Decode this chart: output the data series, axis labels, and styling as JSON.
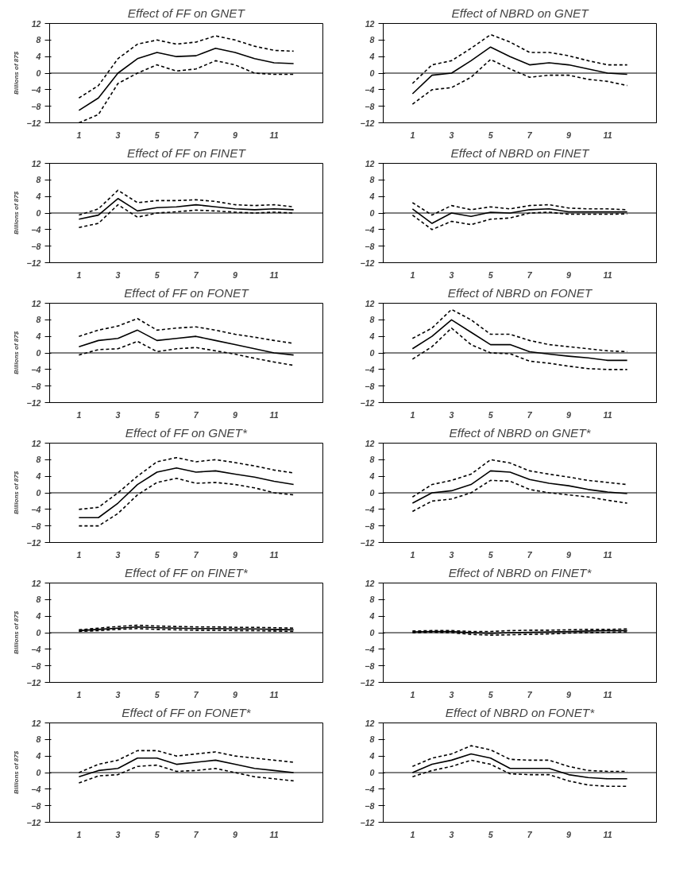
{
  "chart_data": [
    {
      "type": "line",
      "title": "Effect of FF on GNET",
      "ylabel": "Billions of 87$",
      "x": [
        1,
        2,
        3,
        4,
        5,
        6,
        7,
        8,
        9,
        10,
        11,
        12
      ],
      "xlim": [
        -0.5,
        13.5
      ],
      "xticks": [
        1,
        3,
        5,
        7,
        9,
        11
      ],
      "ylim": [
        -12,
        12
      ],
      "yticks": [
        -12,
        -8,
        -4,
        0,
        4,
        8,
        12
      ],
      "grid": false,
      "ref_lines": [
        {
          "axis": "y",
          "value": 0,
          "color": "#000000"
        }
      ],
      "series": [
        {
          "color": "#000000",
          "line_style": "solid",
          "values": [
            -9,
            -6,
            0,
            3.5,
            5,
            4,
            4.2,
            6,
            5,
            3.5,
            2.5,
            2.3
          ]
        },
        {
          "color": "#000000",
          "line_style": "dashed",
          "values": [
            -6,
            -3,
            3.5,
            7,
            8,
            7,
            7.5,
            9,
            8,
            6.5,
            5.5,
            5.3
          ]
        },
        {
          "color": "#000000",
          "line_style": "dashed",
          "values": [
            -12,
            -10,
            -2.5,
            0,
            2,
            0.5,
            1,
            3,
            2,
            0,
            -0.3,
            -0.3
          ]
        }
      ]
    },
    {
      "type": "line",
      "title": "Effect of NBRD on GNET",
      "x": [
        1,
        2,
        3,
        4,
        5,
        6,
        7,
        8,
        9,
        10,
        11,
        12
      ],
      "xlim": [
        -0.5,
        13.5
      ],
      "xticks": [
        1,
        3,
        5,
        7,
        9,
        11
      ],
      "ylim": [
        -12,
        12
      ],
      "yticks": [
        -12,
        -8,
        -4,
        0,
        4,
        8,
        12
      ],
      "grid": false,
      "ref_lines": [
        {
          "axis": "y",
          "value": 0,
          "color": "#000000"
        }
      ],
      "series": [
        {
          "color": "#000000",
          "line_style": "solid",
          "values": [
            -5,
            -0.5,
            0,
            3,
            6.3,
            4,
            2,
            2.5,
            2,
            1,
            0,
            -0.3
          ]
        },
        {
          "color": "#000000",
          "line_style": "dashed",
          "values": [
            -2.5,
            2,
            3,
            6,
            9.3,
            7.5,
            5,
            5,
            4.2,
            3,
            2,
            2
          ]
        },
        {
          "color": "#000000",
          "line_style": "dashed",
          "values": [
            -7.5,
            -4,
            -3.5,
            -1,
            3.3,
            1,
            -1,
            -0.5,
            -0.5,
            -1.5,
            -2,
            -3
          ]
        }
      ]
    },
    {
      "type": "line",
      "title": "Effect of FF on FINET",
      "ylabel": "Billions of 87$",
      "x": [
        1,
        2,
        3,
        4,
        5,
        6,
        7,
        8,
        9,
        10,
        11,
        12
      ],
      "xlim": [
        -0.5,
        13.5
      ],
      "xticks": [
        1,
        3,
        5,
        7,
        9,
        11
      ],
      "ylim": [
        -12,
        12
      ],
      "yticks": [
        -12,
        -8,
        -4,
        0,
        4,
        8,
        12
      ],
      "grid": false,
      "ref_lines": [
        {
          "axis": "y",
          "value": 0,
          "color": "#000000"
        }
      ],
      "series": [
        {
          "color": "#000000",
          "line_style": "solid",
          "values": [
            -1.5,
            -0.5,
            3.5,
            0.5,
            1.3,
            1.5,
            2,
            1.5,
            1,
            0.8,
            1,
            0.8
          ]
        },
        {
          "color": "#000000",
          "line_style": "dashed",
          "values": [
            -0.5,
            1,
            5.5,
            2.5,
            3,
            3,
            3.2,
            2.8,
            2,
            1.8,
            2,
            1.5
          ]
        },
        {
          "color": "#000000",
          "line_style": "dashed",
          "values": [
            -3.5,
            -2.5,
            2,
            -1,
            0,
            0.3,
            0.7,
            0.5,
            0.2,
            0,
            0.2,
            0
          ]
        }
      ]
    },
    {
      "type": "line",
      "title": "Effect of NBRD on FINET",
      "x": [
        1,
        2,
        3,
        4,
        5,
        6,
        7,
        8,
        9,
        10,
        11,
        12
      ],
      "xlim": [
        -0.5,
        13.5
      ],
      "xticks": [
        1,
        3,
        5,
        7,
        9,
        11
      ],
      "ylim": [
        -12,
        12
      ],
      "yticks": [
        -12,
        -8,
        -4,
        0,
        4,
        8,
        12
      ],
      "grid": false,
      "ref_lines": [
        {
          "axis": "y",
          "value": 0,
          "color": "#000000"
        }
      ],
      "series": [
        {
          "color": "#000000",
          "line_style": "solid",
          "values": [
            1,
            -2.5,
            0,
            -0.8,
            0.2,
            0,
            0.8,
            1,
            0.3,
            0.3,
            0.3,
            0.3
          ]
        },
        {
          "color": "#000000",
          "line_style": "dashed",
          "values": [
            2.5,
            -0.5,
            1.8,
            0.8,
            1.5,
            1,
            1.8,
            2,
            1.2,
            1,
            1,
            0.8
          ]
        },
        {
          "color": "#000000",
          "line_style": "dashed",
          "values": [
            -0.5,
            -4,
            -2,
            -2.8,
            -1.5,
            -1.2,
            0,
            0.2,
            -0.3,
            -0.3,
            -0.3,
            -0.2
          ]
        }
      ]
    },
    {
      "type": "line",
      "title": "Effect of FF on FONET",
      "ylabel": "Billions of 87$",
      "x": [
        1,
        2,
        3,
        4,
        5,
        6,
        7,
        8,
        9,
        10,
        11,
        12
      ],
      "xlim": [
        -0.5,
        13.5
      ],
      "xticks": [
        1,
        3,
        5,
        7,
        9,
        11
      ],
      "ylim": [
        -12,
        12
      ],
      "yticks": [
        -12,
        -8,
        -4,
        0,
        4,
        8,
        12
      ],
      "grid": false,
      "ref_lines": [
        {
          "axis": "y",
          "value": 0,
          "color": "#000000"
        }
      ],
      "series": [
        {
          "color": "#000000",
          "line_style": "solid",
          "values": [
            1.5,
            3,
            3.5,
            5.5,
            3,
            3.5,
            4,
            3,
            2,
            1,
            0,
            -0.5
          ]
        },
        {
          "color": "#000000",
          "line_style": "dashed",
          "values": [
            4,
            5.5,
            6.5,
            8.3,
            5.5,
            6,
            6.3,
            5.5,
            4.5,
            3.8,
            3,
            2.3
          ]
        },
        {
          "color": "#000000",
          "line_style": "dashed",
          "values": [
            -0.5,
            0.8,
            1,
            2.8,
            0.3,
            1,
            1.3,
            0.5,
            -0.3,
            -1.3,
            -2.2,
            -3
          ]
        }
      ]
    },
    {
      "type": "line",
      "title": "Effect of NBRD on FONET",
      "x": [
        1,
        2,
        3,
        4,
        5,
        6,
        7,
        8,
        9,
        10,
        11,
        12
      ],
      "xlim": [
        -0.5,
        13.5
      ],
      "xticks": [
        1,
        3,
        5,
        7,
        9,
        11
      ],
      "ylim": [
        -12,
        12
      ],
      "yticks": [
        -12,
        -8,
        -4,
        0,
        4,
        8,
        12
      ],
      "grid": false,
      "ref_lines": [
        {
          "axis": "y",
          "value": 0,
          "color": "#000000"
        }
      ],
      "series": [
        {
          "color": "#000000",
          "line_style": "solid",
          "values": [
            1,
            4,
            8,
            5,
            2,
            2,
            0.3,
            -0.3,
            -0.8,
            -1.2,
            -1.8,
            -1.8
          ]
        },
        {
          "color": "#000000",
          "line_style": "dashed",
          "values": [
            3.5,
            6,
            10.5,
            8,
            4.5,
            4.5,
            3,
            2,
            1.5,
            1,
            0.5,
            0.3
          ]
        },
        {
          "color": "#000000",
          "line_style": "dashed",
          "values": [
            -1.5,
            1.5,
            6,
            2,
            0,
            -0.2,
            -2,
            -2.5,
            -3.2,
            -3.8,
            -4,
            -4
          ]
        }
      ]
    },
    {
      "type": "line",
      "title": "Effect of FF on GNET*",
      "ylabel": "Billions of 87$",
      "x": [
        1,
        2,
        3,
        4,
        5,
        6,
        7,
        8,
        9,
        10,
        11,
        12
      ],
      "xlim": [
        -0.5,
        13.5
      ],
      "xticks": [
        1,
        3,
        5,
        7,
        9,
        11
      ],
      "ylim": [
        -12,
        12
      ],
      "yticks": [
        -12,
        -8,
        -4,
        0,
        4,
        8,
        12
      ],
      "grid": false,
      "ref_lines": [
        {
          "axis": "y",
          "value": 0,
          "color": "#000000"
        }
      ],
      "series": [
        {
          "color": "#000000",
          "line_style": "solid",
          "values": [
            -6,
            -6,
            -2.5,
            2,
            5,
            6,
            5,
            5.3,
            4.5,
            3.8,
            2.8,
            2
          ]
        },
        {
          "color": "#000000",
          "line_style": "dashed",
          "values": [
            -4,
            -3.5,
            0,
            4,
            7.5,
            8.5,
            7.5,
            8,
            7.3,
            6.5,
            5.5,
            4.8
          ]
        },
        {
          "color": "#000000",
          "line_style": "dashed",
          "values": [
            -8,
            -8,
            -5,
            -0.5,
            2.5,
            3.5,
            2.3,
            2.5,
            2,
            1.2,
            0,
            -0.5
          ]
        }
      ]
    },
    {
      "type": "line",
      "title": "Effect of NBRD on GNET*",
      "x": [
        1,
        2,
        3,
        4,
        5,
        6,
        7,
        8,
        9,
        10,
        11,
        12
      ],
      "xlim": [
        -0.5,
        13.5
      ],
      "xticks": [
        1,
        3,
        5,
        7,
        9,
        11
      ],
      "ylim": [
        -12,
        12
      ],
      "yticks": [
        -12,
        -8,
        -4,
        0,
        4,
        8,
        12
      ],
      "grid": false,
      "ref_lines": [
        {
          "axis": "y",
          "value": 0,
          "color": "#000000"
        }
      ],
      "series": [
        {
          "color": "#000000",
          "line_style": "solid",
          "values": [
            -2.5,
            0,
            0.5,
            2,
            5.3,
            5,
            3.2,
            2.3,
            1.7,
            0.8,
            0.2,
            -0.2
          ]
        },
        {
          "color": "#000000",
          "line_style": "dashed",
          "values": [
            -1,
            2,
            3,
            4.5,
            8,
            7.2,
            5.3,
            4.5,
            3.8,
            3,
            2.5,
            2
          ]
        },
        {
          "color": "#000000",
          "line_style": "dashed",
          "values": [
            -4.5,
            -2,
            -1.5,
            0,
            3,
            2.8,
            0.8,
            0,
            -0.5,
            -1,
            -1.8,
            -2.5
          ]
        }
      ]
    },
    {
      "type": "line",
      "title": "Effect of FF on FINET*",
      "ylabel": "Billions of 87$",
      "x": [
        1,
        2,
        3,
        4,
        5,
        6,
        7,
        8,
        9,
        10,
        11,
        12
      ],
      "xlim": [
        -0.5,
        13.5
      ],
      "xticks": [
        1,
        3,
        5,
        7,
        9,
        11
      ],
      "ylim": [
        -12,
        12
      ],
      "yticks": [
        -12,
        -8,
        -4,
        0,
        4,
        8,
        12
      ],
      "grid": false,
      "ref_lines": [
        {
          "axis": "y",
          "value": 0,
          "color": "#000000"
        }
      ],
      "series": [
        {
          "color": "#000000",
          "line_style": "solid",
          "values": [
            0.5,
            0.8,
            1.1,
            1.4,
            1.2,
            1.1,
            1,
            1,
            0.9,
            0.9,
            0.8,
            0.7
          ]
        },
        {
          "color": "#000000",
          "line_style": "dashed",
          "values": [
            0.7,
            1.1,
            1.5,
            1.8,
            1.6,
            1.5,
            1.4,
            1.4,
            1.3,
            1.3,
            1.2,
            1.1
          ]
        },
        {
          "color": "#000000",
          "line_style": "dashed",
          "values": [
            0.3,
            0.5,
            0.8,
            1,
            0.8,
            0.7,
            0.6,
            0.6,
            0.5,
            0.5,
            0.4,
            0.3
          ]
        }
      ]
    },
    {
      "type": "line",
      "title": "Effect of NBRD on FINET*",
      "x": [
        1,
        2,
        3,
        4,
        5,
        6,
        7,
        8,
        9,
        10,
        11,
        12
      ],
      "xlim": [
        -0.5,
        13.5
      ],
      "xticks": [
        1,
        3,
        5,
        7,
        9,
        11
      ],
      "ylim": [
        -12,
        12
      ],
      "yticks": [
        -12,
        -8,
        -4,
        0,
        4,
        8,
        12
      ],
      "grid": false,
      "ref_lines": [
        {
          "axis": "y",
          "value": 0,
          "color": "#000000"
        }
      ],
      "series": [
        {
          "color": "#000000",
          "line_style": "solid",
          "values": [
            0.2,
            0.3,
            0.3,
            0,
            -0.2,
            0,
            0.1,
            0.2,
            0.3,
            0.4,
            0.5,
            0.5
          ]
        },
        {
          "color": "#000000",
          "line_style": "dashed",
          "values": [
            0.4,
            0.5,
            0.5,
            0.3,
            0.3,
            0.5,
            0.6,
            0.6,
            0.7,
            0.8,
            0.8,
            0.9
          ]
        },
        {
          "color": "#000000",
          "line_style": "dashed",
          "values": [
            0,
            0.1,
            0,
            -0.4,
            -0.6,
            -0.5,
            -0.4,
            -0.3,
            -0.1,
            0,
            0.1,
            0.2
          ]
        }
      ]
    },
    {
      "type": "line",
      "title": "Effect of FF on FONET*",
      "ylabel": "Billions of 87$",
      "x": [
        1,
        2,
        3,
        4,
        5,
        6,
        7,
        8,
        9,
        10,
        11,
        12
      ],
      "xlim": [
        -0.5,
        13.5
      ],
      "xticks": [
        1,
        3,
        5,
        7,
        9,
        11
      ],
      "ylim": [
        -12,
        12
      ],
      "yticks": [
        -12,
        -8,
        -4,
        0,
        4,
        8,
        12
      ],
      "grid": false,
      "ref_lines": [
        {
          "axis": "y",
          "value": 0,
          "color": "#000000"
        }
      ],
      "series": [
        {
          "color": "#000000",
          "line_style": "solid",
          "values": [
            -1,
            0.5,
            1,
            3.5,
            3.5,
            2,
            2.5,
            3,
            2,
            1,
            0.5,
            0
          ]
        },
        {
          "color": "#000000",
          "line_style": "dashed",
          "values": [
            0,
            2,
            3,
            5.3,
            5.3,
            4,
            4.5,
            5,
            4,
            3.5,
            3,
            2.5
          ]
        },
        {
          "color": "#000000",
          "line_style": "dashed",
          "values": [
            -2.5,
            -0.8,
            -0.5,
            1.5,
            1.8,
            0.3,
            0.5,
            1,
            0,
            -1,
            -1.5,
            -2
          ]
        }
      ]
    },
    {
      "type": "line",
      "title": "Effect of NBRD on FONET*",
      "x": [
        1,
        2,
        3,
        4,
        5,
        6,
        7,
        8,
        9,
        10,
        11,
        12
      ],
      "xlim": [
        -0.5,
        13.5
      ],
      "xticks": [
        1,
        3,
        5,
        7,
        9,
        11
      ],
      "ylim": [
        -12,
        12
      ],
      "yticks": [
        -12,
        -8,
        -4,
        0,
        4,
        8,
        12
      ],
      "grid": false,
      "ref_lines": [
        {
          "axis": "y",
          "value": 0,
          "color": "#000000"
        }
      ],
      "series": [
        {
          "color": "#000000",
          "line_style": "solid",
          "values": [
            0,
            2,
            3,
            4.5,
            3.5,
            1,
            1,
            1,
            -0.5,
            -1.2,
            -1.5,
            -1.5
          ]
        },
        {
          "color": "#000000",
          "line_style": "dashed",
          "values": [
            1.5,
            3.5,
            4.5,
            6.5,
            5.5,
            3.2,
            3,
            3,
            1.5,
            0.5,
            0.3,
            0.3
          ]
        },
        {
          "color": "#000000",
          "line_style": "dashed",
          "values": [
            -1,
            0.5,
            1.5,
            3,
            2,
            -0.3,
            -0.5,
            -0.5,
            -2,
            -3,
            -3.3,
            -3.3
          ]
        }
      ]
    }
  ]
}
